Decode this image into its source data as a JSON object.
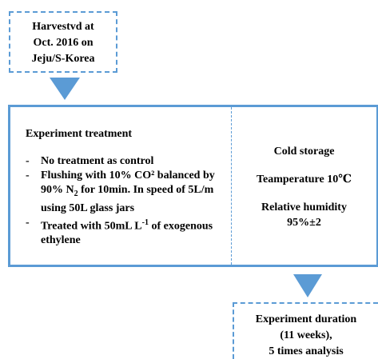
{
  "source_box": {
    "lines": [
      "Harvestvd at",
      "Oct. 2016 on",
      "Jeju/S-Korea"
    ]
  },
  "treatment": {
    "title": "Experiment treatment",
    "bullet": "-",
    "items": [
      [
        {
          "text": "No treatment as control"
        }
      ],
      [
        {
          "text": "Flushing with 10% CO²  balanced by 90% N"
        },
        {
          "sub": "2"
        },
        {
          "text": " for 10min. In speed of 5L/m using 50L glass jars"
        }
      ],
      [
        {
          "text": "Treated with 50mL L"
        },
        {
          "sup": "-1"
        },
        {
          "text": " of exogenous ethylene"
        }
      ]
    ]
  },
  "storage": {
    "title": "Cold storage",
    "temperature": "Teamperature 10℃",
    "humidity_label": "Relative humidity",
    "humidity_value": "95%±2"
  },
  "duration_box": {
    "lines": [
      "Experiment duration",
      "(11 weeks),",
      "5 times analysis"
    ]
  }
}
